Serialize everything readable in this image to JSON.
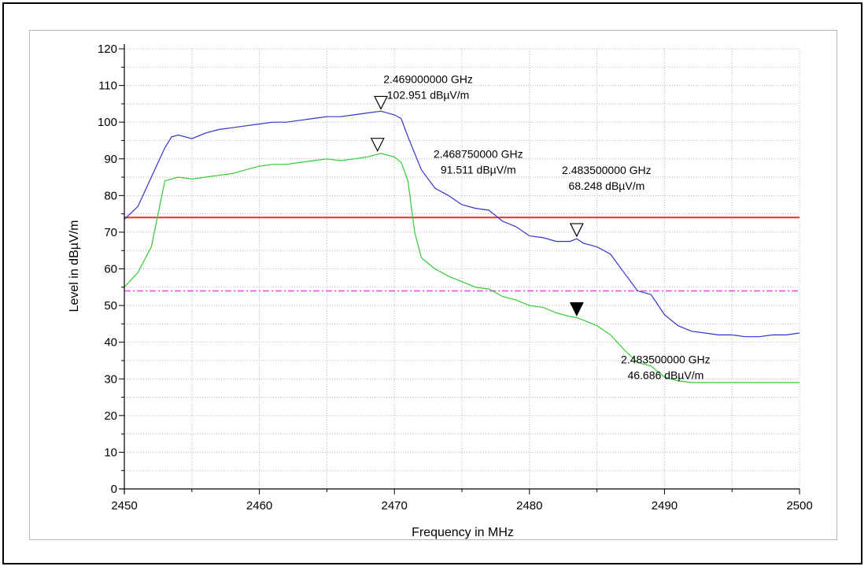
{
  "chart_data": {
    "type": "line",
    "xlabel": "Frequency in MHz",
    "ylabel": "Level in dBµV/m",
    "xlim": [
      2450,
      2500
    ],
    "ylim": [
      0,
      120
    ],
    "xticks": [
      2450,
      2460,
      2470,
      2480,
      2490,
      2500
    ],
    "yticks": [
      0,
      10,
      20,
      30,
      40,
      50,
      60,
      70,
      80,
      90,
      100,
      110,
      120
    ],
    "x_tick_labels": [
      "2450",
      "2460",
      "2470",
      "2480",
      "2490",
      "2500"
    ],
    "y_tick_labels": [
      "0",
      "10",
      "20",
      "30",
      "40",
      "50",
      "60",
      "70",
      "80",
      "90",
      "100",
      "110",
      "120"
    ],
    "grid": true,
    "series": [
      {
        "color": "#3333cc",
        "x": [
          2450,
          2451,
          2452,
          2453,
          2453.5,
          2454,
          2455,
          2456,
          2457,
          2458,
          2459,
          2460,
          2461,
          2462,
          2463,
          2464,
          2465,
          2466,
          2467,
          2468,
          2469,
          2470,
          2470.5,
          2471,
          2472,
          2473,
          2474,
          2475,
          2476,
          2477,
          2478,
          2479,
          2480,
          2481,
          2482,
          2483,
          2483.5,
          2484,
          2485,
          2486,
          2487,
          2488,
          2489,
          2490,
          2491,
          2492,
          2493,
          2494,
          2495,
          2496,
          2497,
          2498,
          2499,
          2500
        ],
        "y": [
          73.5,
          77,
          85,
          93,
          96,
          96.5,
          95.5,
          97,
          98,
          98.5,
          99,
          99.5,
          100,
          100,
          100.5,
          101,
          101.5,
          101.5,
          102,
          102.5,
          103,
          102,
          101,
          96,
          87,
          82,
          80,
          77.5,
          76.5,
          76,
          73,
          71.5,
          69,
          68.5,
          67.5,
          67.5,
          68.2,
          67,
          66,
          64,
          59,
          54,
          53,
          47.5,
          44.5,
          43,
          42.5,
          42,
          42,
          41.5,
          41.5,
          42,
          42,
          42.5
        ]
      },
      {
        "color": "#33cc33",
        "x": [
          2450,
          2451,
          2452,
          2452.5,
          2453,
          2454,
          2455,
          2456,
          2457,
          2458,
          2459,
          2460,
          2461,
          2462,
          2463,
          2464,
          2465,
          2466,
          2467,
          2468,
          2469,
          2470,
          2470.5,
          2471,
          2471.5,
          2472,
          2473,
          2474,
          2475,
          2476,
          2477,
          2478,
          2479,
          2480,
          2481,
          2482,
          2483,
          2483.5,
          2484,
          2485,
          2486,
          2487,
          2488,
          2489,
          2490,
          2491,
          2492,
          2493,
          2494,
          2495,
          2496,
          2497,
          2498,
          2499,
          2500
        ],
        "y": [
          55,
          59,
          66,
          75,
          84,
          85,
          84.5,
          85,
          85.5,
          86,
          87,
          88,
          88.5,
          88.5,
          89,
          89.5,
          90,
          89.5,
          90,
          90.5,
          91.5,
          90.5,
          89,
          84,
          70,
          63,
          60,
          58,
          56.5,
          55,
          54.5,
          52.5,
          51.5,
          50,
          49.5,
          48,
          47,
          46.7,
          46,
          44.5,
          42,
          38,
          34.5,
          33.5,
          30.5,
          29.5,
          29,
          29,
          29,
          29,
          29,
          29,
          29,
          29,
          29
        ]
      }
    ],
    "limit_lines": [
      {
        "value": 74,
        "color": "#dd3333",
        "style": "solid"
      },
      {
        "value": 54,
        "color": "#ee44ee",
        "style": "dash-dot"
      }
    ],
    "markers": [
      {
        "x": 2469.0,
        "y": 102.951,
        "filled": false,
        "label_line1": "2.469000000 GHz",
        "label_line2": "102.951 dBµV/m"
      },
      {
        "x": 2468.75,
        "y": 91.511,
        "filled": false,
        "label_line1": "2.468750000 GHz",
        "label_line2": "91.511 dBµV/m"
      },
      {
        "x": 2483.5,
        "y": 68.248,
        "filled": false,
        "label_line1": "2.483500000 GHz",
        "label_line2": "68.248 dBµV/m"
      },
      {
        "x": 2483.5,
        "y": 46.686,
        "filled": true,
        "label_line1": "2.483500000 GHz",
        "label_line2": "46.686 dBµV/m"
      }
    ]
  }
}
